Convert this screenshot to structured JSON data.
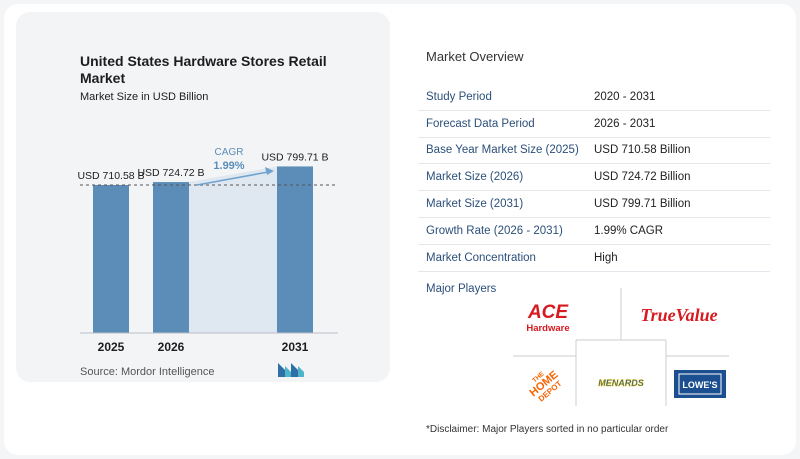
{
  "chart": {
    "title": "United States Hardware Stores Retail Market",
    "subtitle": "Market Size in USD Billion",
    "source": "Source:  Mordor Intelligence"
  },
  "chart_data": {
    "type": "bar",
    "title": "United States Hardware Stores Retail Market",
    "subtitle": "Market Size in USD Billion",
    "categories": [
      "2025",
      "2026",
      "2031"
    ],
    "values": [
      710.58,
      724.72,
      799.71
    ],
    "value_labels": [
      "USD 710.58 B",
      "USD 724.72 B",
      "USD 799.71 B"
    ],
    "annotation": {
      "label": "CAGR",
      "value": "1.99%"
    },
    "bar_color": "#5b8db8",
    "arrow_color": "#6fa3cf",
    "shading_color": "#dfe7f0",
    "grid": false,
    "legend": "none"
  },
  "overview": {
    "title": "Market Overview",
    "rows": [
      {
        "label": "Study Period",
        "value": "2020 - 2031"
      },
      {
        "label": "Forecast Data Period",
        "value": "2026 - 2031"
      },
      {
        "label": "Base Year Market Size (2025)",
        "value": "USD 710.58 Billion"
      },
      {
        "label": "Market Size (2026)",
        "value": "USD 724.72 Billion"
      },
      {
        "label": "Market Size (2031)",
        "value": "USD 799.71 Billion"
      },
      {
        "label": "Growth Rate (2026 - 2031)",
        "value": "1.99% CAGR"
      },
      {
        "label": "Market Concentration",
        "value": "High"
      }
    ]
  },
  "players": {
    "title": "Major Players",
    "ace": {
      "line1": "ACE",
      "line2": "Hardware",
      "color": "#d71920"
    },
    "truevalue": {
      "text": "TrueValue",
      "color": "#d71920"
    },
    "homedepot": {
      "line1": "THE",
      "line2": "HOME",
      "line3": "DEPOT",
      "color": "#f96302"
    },
    "menards": {
      "text": "MENARDS",
      "color": "#1a5a96"
    },
    "lowes": {
      "text": "LOWE'S",
      "color": "#1b4f8f"
    }
  },
  "disclaimer": "*Disclaimer: Major Players sorted in no particular order"
}
